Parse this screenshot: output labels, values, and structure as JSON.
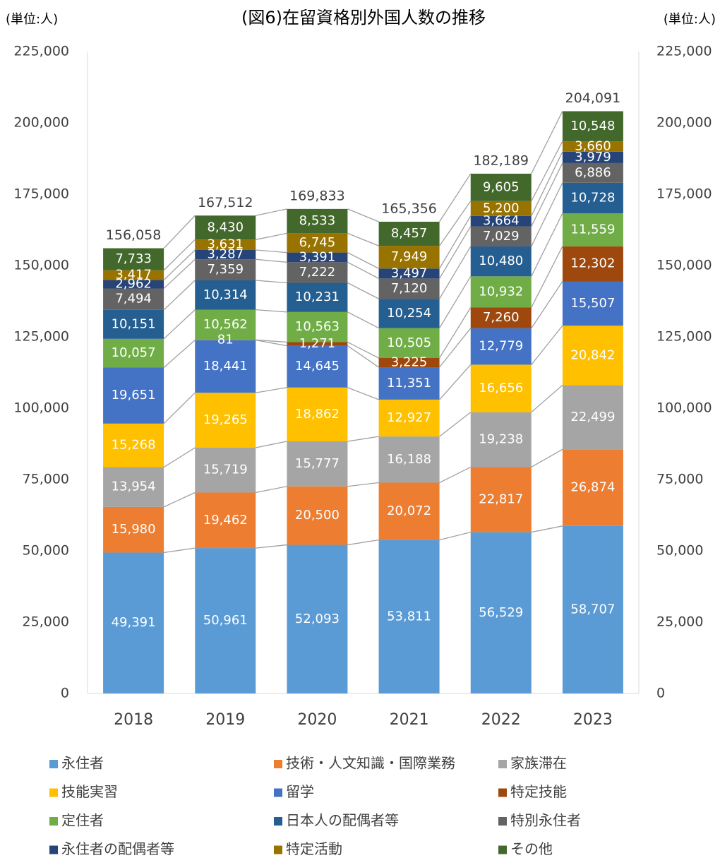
{
  "chart_data": {
    "type": "stacked_bar",
    "title": "(図6)在留資格別外国人数の推移",
    "y_unit": "(単位:人)",
    "y2_unit": "(単位:人)",
    "categories": [
      "2018",
      "2019",
      "2020",
      "2021",
      "2022",
      "2023"
    ],
    "ylim": [
      0,
      225000
    ],
    "y2lim": [
      0,
      225000
    ],
    "yticks": [
      0,
      {
        "value": 25000,
        "label": "25,000"
      },
      {
        "value": 50000,
        "label": "50,000"
      },
      {
        "value": 75000,
        "label": "75,000"
      },
      {
        "value": 100000,
        "label": "100,000"
      },
      {
        "value": 125000,
        "label": "125,000"
      },
      {
        "value": 150000,
        "label": "150,000"
      },
      {
        "value": 175000,
        "label": "175,000"
      },
      {
        "value": 200000,
        "label": "200,000"
      },
      {
        "value": 225000,
        "label": "225,000"
      }
    ],
    "y2ticks": [
      0,
      {
        "value": 25000,
        "label": "25,000"
      },
      {
        "value": 50000,
        "label": "50,000"
      },
      {
        "value": 75000,
        "label": "75,000"
      },
      {
        "value": 100000,
        "label": "100,000"
      },
      {
        "value": 125000,
        "label": "125,000"
      },
      {
        "value": 150000,
        "label": "150,000"
      },
      {
        "value": 175000,
        "label": "175,000"
      },
      {
        "value": 200000,
        "label": "200,000"
      },
      {
        "value": 225000,
        "label": "225,000"
      }
    ],
    "series": [
      {
        "name": "永住者",
        "color": "#5b9bd5",
        "values": [
          49391,
          50961,
          52093,
          53811,
          56529,
          58707
        ],
        "value_labels": [
          "49,391",
          "50,961",
          "52,093",
          "53,811",
          "56,529",
          "58,707"
        ]
      },
      {
        "name": "技術・人文知識・国際業務",
        "color": "#ed7d31",
        "values": [
          15980,
          19462,
          20500,
          20072,
          22817,
          26874
        ],
        "value_labels": [
          "15,980",
          "19,462",
          "20,500",
          "20,072",
          "22,817",
          "26,874"
        ]
      },
      {
        "name": "家族滞在",
        "color": "#a5a5a5",
        "values": [
          13954,
          15719,
          15777,
          16188,
          19238,
          22499
        ],
        "value_labels": [
          "13,954",
          "15,719",
          "15,777",
          "16,188",
          "19,238",
          "22,499"
        ]
      },
      {
        "name": "技能実習",
        "color": "#ffc000",
        "values": [
          15268,
          19265,
          18862,
          12927,
          16656,
          20842
        ],
        "value_labels": [
          "15,268",
          "19,265",
          "18,862",
          "12,927",
          "16,656",
          "20,842"
        ]
      },
      {
        "name": "留学",
        "color": "#4472c4",
        "values": [
          19651,
          18441,
          14645,
          11351,
          12779,
          15507
        ],
        "value_labels": [
          "19,651",
          "18,441",
          "14,645",
          "11,351",
          "12,779",
          "15,507"
        ]
      },
      {
        "name": "特定技能",
        "color": "#9e480e",
        "values": [
          null,
          81,
          1271,
          3225,
          7260,
          12302
        ],
        "value_labels": [
          null,
          "81",
          "1,271",
          "3,225",
          "7,260",
          "12,302"
        ]
      },
      {
        "name": "定住者",
        "color": "#70ad47",
        "values": [
          10057,
          10562,
          10563,
          10505,
          10932,
          11559
        ],
        "value_labels": [
          "10,057",
          "10,562",
          "10,563",
          "10,505",
          "10,932",
          "11,559"
        ]
      },
      {
        "name": "日本人の配偶者等",
        "color": "#255e91",
        "values": [
          10151,
          10314,
          10231,
          10254,
          10480,
          10728
        ],
        "value_labels": [
          "10,151",
          "10,314",
          "10,231",
          "10,254",
          "10,480",
          "10,728"
        ]
      },
      {
        "name": "特別永住者",
        "color": "#636363",
        "values": [
          7494,
          7359,
          7222,
          7120,
          7029,
          6886
        ],
        "value_labels": [
          "7,494",
          "7,359",
          "7,222",
          "7,120",
          "7,029",
          "6,886"
        ]
      },
      {
        "name": "永住者の配偶者等",
        "color": "#264478",
        "values": [
          2962,
          3287,
          3391,
          3497,
          3664,
          3979
        ],
        "value_labels": [
          "2,962",
          "3,287",
          "3,391",
          "3,497",
          "3,664",
          "3,979"
        ]
      },
      {
        "name": "特定活動",
        "color": "#997300",
        "values": [
          3417,
          3631,
          6745,
          7949,
          5200,
          3660
        ],
        "value_labels": [
          "3,417",
          "3,631",
          "6,745",
          "7,949",
          "5,200",
          "3,660"
        ]
      },
      {
        "name": "その他",
        "color": "#43682b",
        "values": [
          7733,
          8430,
          8533,
          8457,
          9605,
          10548
        ],
        "value_labels": [
          "7,733",
          "8,430",
          "8,533",
          "8,457",
          "9,605",
          "10,548"
        ]
      }
    ],
    "totals": [
      156058,
      167512,
      169833,
      165356,
      182189,
      204091
    ],
    "total_labels": [
      "156,058",
      "167,512",
      "169,833",
      "165,356",
      "182,189",
      "204,091"
    ]
  }
}
